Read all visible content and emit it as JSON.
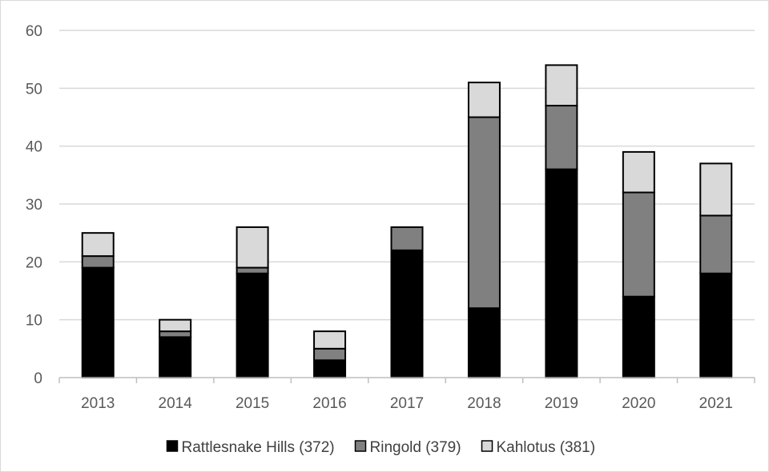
{
  "chart_data": {
    "type": "bar",
    "stacked": true,
    "title": "",
    "xlabel": "",
    "ylabel": "",
    "categories": [
      "2013",
      "2014",
      "2015",
      "2016",
      "2017",
      "2018",
      "2019",
      "2020",
      "2021"
    ],
    "series": [
      {
        "name": "Rattlesnake Hills (372)",
        "color": "#000000",
        "values": [
          19,
          7,
          18,
          3,
          22,
          12,
          36,
          14,
          18
        ]
      },
      {
        "name": "Ringold (379)",
        "color": "#808080",
        "values": [
          2,
          1,
          1,
          2,
          4,
          33,
          11,
          18,
          10
        ]
      },
      {
        "name": "Kahlotus (381)",
        "color": "#d9d9d9",
        "values": [
          4,
          2,
          7,
          3,
          0,
          6,
          7,
          7,
          9
        ]
      }
    ],
    "ylim": [
      0,
      60
    ],
    "yticks": [
      0,
      10,
      20,
      30,
      40,
      50,
      60
    ],
    "grid": true,
    "legend_position": "bottom",
    "colors": {
      "gridline": "#d9d9d9",
      "axis": "#bfbfbf",
      "bar_outline": "#000000"
    }
  }
}
